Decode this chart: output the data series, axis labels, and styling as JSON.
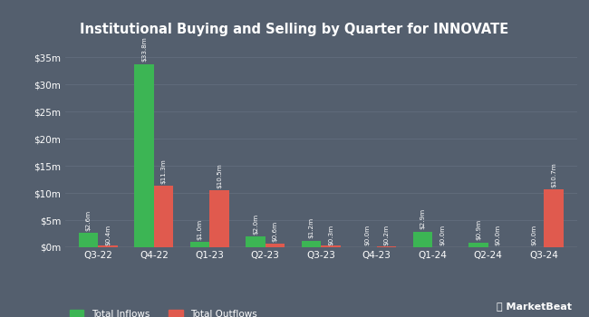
{
  "title": "Institutional Buying and Selling by Quarter for INNOVATE",
  "quarters": [
    "Q3-22",
    "Q4-22",
    "Q1-23",
    "Q2-23",
    "Q3-23",
    "Q4-23",
    "Q1-24",
    "Q2-24",
    "Q3-24"
  ],
  "inflows": [
    2.6,
    33.8,
    1.0,
    2.0,
    1.2,
    0.0,
    2.9,
    0.9,
    0.0
  ],
  "outflows": [
    0.4,
    11.3,
    10.5,
    0.6,
    0.3,
    0.2,
    0.0,
    0.0,
    10.7
  ],
  "inflow_labels": [
    "$2.6m",
    "$33.8m",
    "$1.0m",
    "$2.0m",
    "$1.2m",
    "$0.0m",
    "$2.9m",
    "$0.9m",
    "$0.0m"
  ],
  "outflow_labels": [
    "$0.4m",
    "$11.3m",
    "$10.5m",
    "$0.6m",
    "$0.3m",
    "$0.2m",
    "$0.0m",
    "$0.0m",
    "$10.7m"
  ],
  "inflow_color": "#3cb554",
  "outflow_color": "#e05a4e",
  "bg_color": "#545f6e",
  "text_color": "#ffffff",
  "grid_color": "#626d7d",
  "ylim": [
    0,
    38
  ],
  "yticks": [
    0,
    5,
    10,
    15,
    20,
    25,
    30,
    35
  ],
  "ytick_labels": [
    "$0m",
    "$5m",
    "$10m",
    "$15m",
    "$20m",
    "$25m",
    "$30m",
    "$35m"
  ],
  "legend_inflow": "Total Inflows",
  "legend_outflow": "Total Outflows",
  "bar_width": 0.35
}
